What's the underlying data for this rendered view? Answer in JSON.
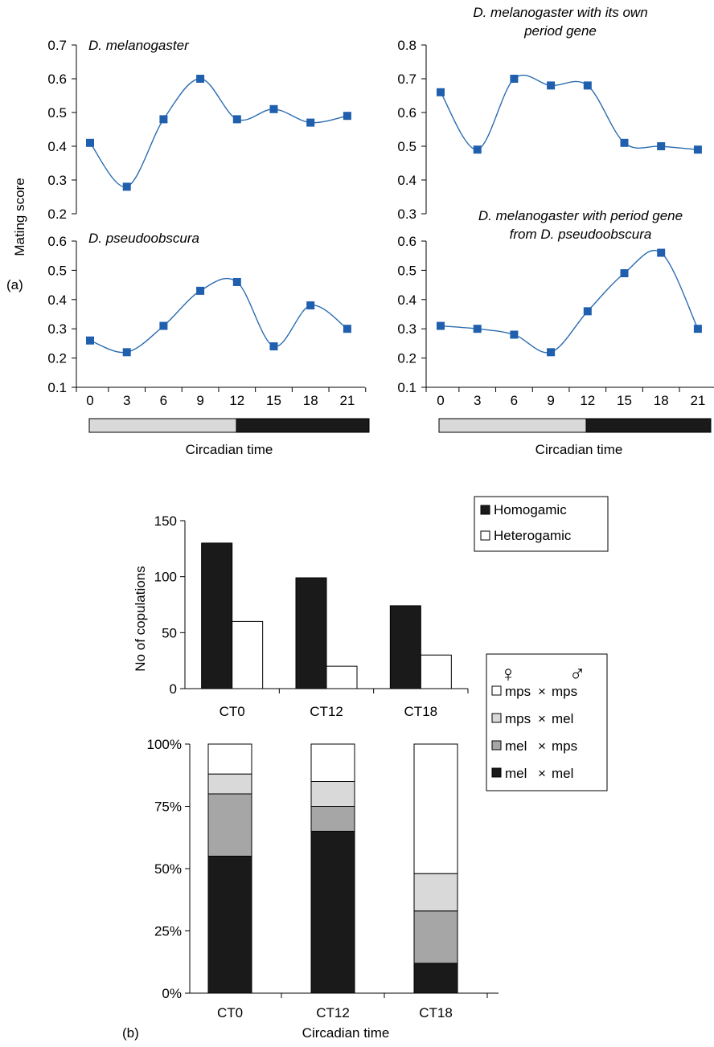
{
  "panel_a": {
    "label": "(a)",
    "ylabel": "Mating score",
    "xlabel_left": "Circadian time",
    "xlabel_right": "Circadian time"
  },
  "panel_b": {
    "label": "(b)",
    "xlabel": "Circadian time",
    "legend_female_symbol": "♀",
    "legend_male_symbol": "♂",
    "cross_symbol": "×"
  },
  "colors": {
    "line": "#2b6cb0",
    "marker": "#1f5fad",
    "light_bar": "#d9d9d9",
    "dark_bar": "#1a1a1a",
    "mid_gray": "#a6a6a6",
    "light_gray": "#d9d9d9",
    "white": "#ffffff"
  },
  "chart_data": [
    {
      "id": "a1",
      "type": "line",
      "title": "D. melanogaster",
      "ylabel": "Mating score",
      "x": [
        0,
        3,
        6,
        9,
        12,
        15,
        18,
        21
      ],
      "values": [
        0.41,
        0.28,
        0.48,
        0.6,
        0.48,
        0.51,
        0.47,
        0.49
      ],
      "ylim": [
        0.2,
        0.7
      ],
      "yticks": [
        "0.2",
        "0.3",
        "0.4",
        "0.5",
        "0.6",
        "0.7"
      ]
    },
    {
      "id": "a2",
      "type": "line",
      "title_lines": [
        "D. melanogaster with its own",
        "period gene"
      ],
      "x": [
        0,
        3,
        6,
        9,
        12,
        15,
        18,
        21
      ],
      "values": [
        0.66,
        0.49,
        0.7,
        0.68,
        0.68,
        0.51,
        0.5,
        0.49
      ],
      "ylim": [
        0.3,
        0.8
      ],
      "yticks": [
        "0.3",
        "0.4",
        "0.5",
        "0.6",
        "0.7",
        "0.8"
      ]
    },
    {
      "id": "a3",
      "type": "line",
      "title": "D. pseudoobscura",
      "x": [
        0,
        3,
        6,
        9,
        12,
        15,
        18,
        21
      ],
      "xticks": [
        "0",
        "3",
        "6",
        "9",
        "12",
        "15",
        "18",
        "21"
      ],
      "values": [
        0.26,
        0.22,
        0.31,
        0.43,
        0.46,
        0.24,
        0.38,
        0.3
      ],
      "ylim": [
        0.1,
        0.6
      ],
      "yticks": [
        "0.1",
        "0.2",
        "0.3",
        "0.4",
        "0.5",
        "0.6"
      ],
      "xlabel": "Circadian time"
    },
    {
      "id": "a4",
      "type": "line",
      "title_lines": [
        "D. melanogaster with period gene",
        "from D. pseudoobscura"
      ],
      "x": [
        0,
        3,
        6,
        9,
        12,
        15,
        18,
        21
      ],
      "xticks": [
        "0",
        "3",
        "6",
        "9",
        "12",
        "15",
        "18",
        "21"
      ],
      "values": [
        0.31,
        0.3,
        0.28,
        0.22,
        0.36,
        0.49,
        0.56,
        0.3
      ],
      "ylim": [
        0.1,
        0.6
      ],
      "yticks": [
        "0.1",
        "0.2",
        "0.3",
        "0.4",
        "0.5",
        "0.6"
      ],
      "xlabel": "Circadian time"
    },
    {
      "id": "b1",
      "type": "bar",
      "categories": [
        "CT0",
        "CT12",
        "CT18"
      ],
      "series": [
        {
          "name": "Homogamic",
          "values": [
            130,
            99,
            74
          ]
        },
        {
          "name": "Heterogamic",
          "values": [
            60,
            20,
            30
          ]
        }
      ],
      "ylabel": "No of copulations",
      "ylim": [
        0,
        150
      ],
      "yticks": [
        "0",
        "50",
        "100",
        "150"
      ],
      "legend": "top-right"
    },
    {
      "id": "b2",
      "type": "bar",
      "stacked": true,
      "categories": [
        "CT0",
        "CT12",
        "CT18"
      ],
      "series": [
        {
          "name": "mel × mel",
          "female": "mel",
          "male": "mel",
          "values": [
            55,
            65,
            12
          ]
        },
        {
          "name": "mel × mps",
          "female": "mel",
          "male": "mps",
          "values": [
            25,
            10,
            21
          ]
        },
        {
          "name": "mps × mel",
          "female": "mps",
          "male": "mel",
          "values": [
            8,
            10,
            15
          ]
        },
        {
          "name": "mps × mps",
          "female": "mps",
          "male": "mps",
          "values": [
            12,
            15,
            52
          ]
        }
      ],
      "ylim": [
        0,
        100
      ],
      "yticks": [
        "0%",
        "25%",
        "50%",
        "75%",
        "100%"
      ],
      "xlabel": "Circadian time",
      "legend": "right"
    }
  ]
}
